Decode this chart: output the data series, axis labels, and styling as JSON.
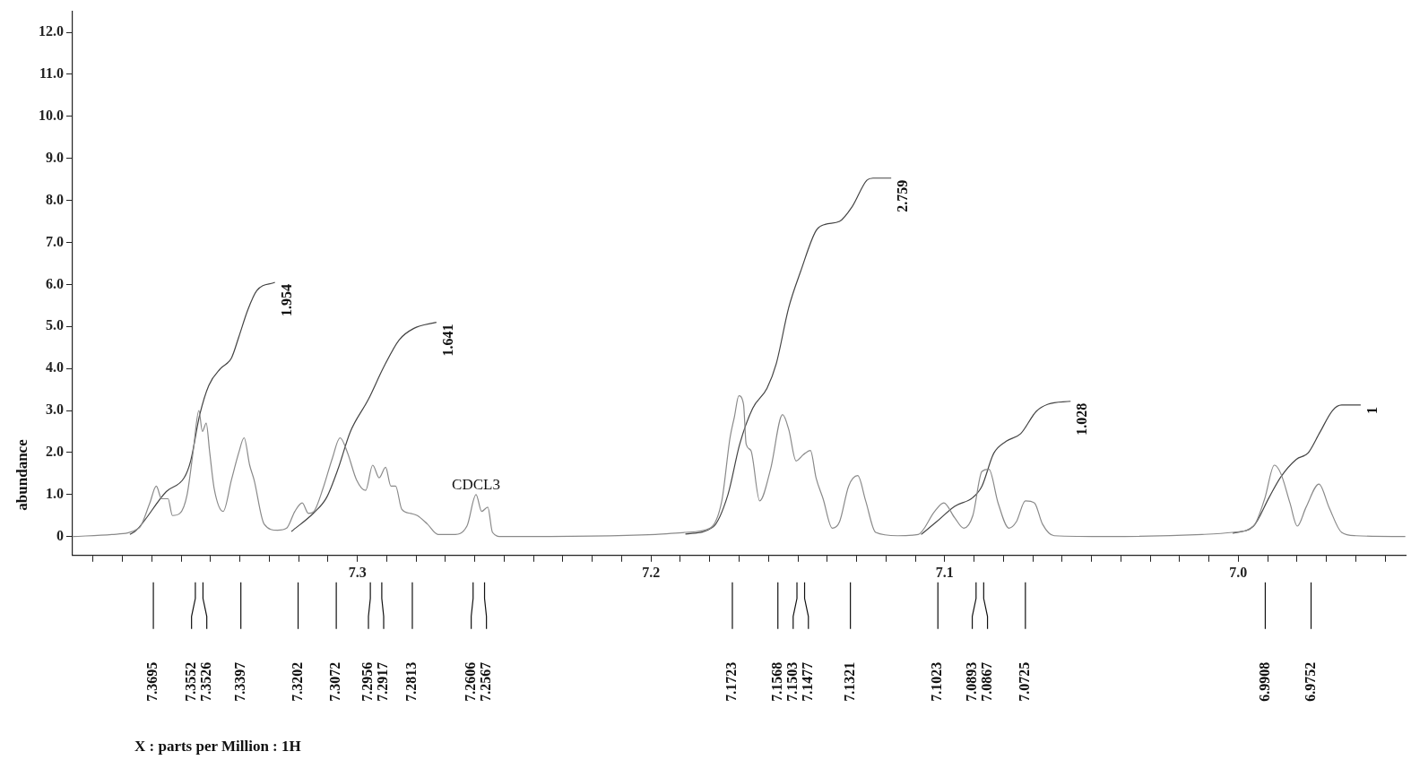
{
  "chart_data": {
    "type": "line",
    "ylabel": "abundance",
    "xlim": [
      7.397,
      6.943
    ],
    "ylim": [
      -0.45,
      12.5
    ],
    "xticks": [
      {
        "value": 7.39,
        "label": null
      },
      {
        "value": 7.38,
        "label": null
      },
      {
        "value": 7.37,
        "label": null
      },
      {
        "value": 7.36,
        "label": null
      },
      {
        "value": 7.35,
        "label": null
      },
      {
        "value": 7.34,
        "label": null
      },
      {
        "value": 7.33,
        "label": null
      },
      {
        "value": 7.32,
        "label": null
      },
      {
        "value": 7.31,
        "label": null
      },
      7.3,
      {
        "value": 7.29,
        "label": null
      },
      {
        "value": 7.28,
        "label": null
      },
      {
        "value": 7.27,
        "label": null
      },
      {
        "value": 7.26,
        "label": null
      },
      {
        "value": 7.25,
        "label": null
      },
      {
        "value": 7.24,
        "label": null
      },
      {
        "value": 7.23,
        "label": null
      },
      {
        "value": 7.22,
        "label": null
      },
      {
        "value": 7.21,
        "label": null
      },
      7.2,
      {
        "value": 7.19,
        "label": null
      },
      {
        "value": 7.18,
        "label": null
      },
      {
        "value": 7.17,
        "label": null
      },
      {
        "value": 7.16,
        "label": null
      },
      {
        "value": 7.15,
        "label": null
      },
      {
        "value": 7.14,
        "label": null
      },
      {
        "value": 7.13,
        "label": null
      },
      {
        "value": 7.12,
        "label": null
      },
      {
        "value": 7.11,
        "label": null
      },
      7.1,
      {
        "value": 7.09,
        "label": null
      },
      {
        "value": 7.08,
        "label": null
      },
      {
        "value": 7.07,
        "label": null
      },
      {
        "value": 7.06,
        "label": null
      },
      {
        "value": 7.05,
        "label": null
      },
      {
        "value": 7.04,
        "label": null
      },
      {
        "value": 7.03,
        "label": null
      },
      {
        "value": 7.02,
        "label": null
      },
      {
        "value": 7.01,
        "label": null
      },
      {
        "value": 7,
        "label": "7.0"
      },
      {
        "value": 6.99,
        "label": null
      },
      {
        "value": 6.98,
        "label": null
      },
      {
        "value": 6.97,
        "label": null
      },
      {
        "value": 6.96,
        "label": null
      },
      {
        "value": 6.95,
        "label": null
      }
    ],
    "x2lim": [
      7.397,
      6.943
    ],
    "x2ticks": [
      7.3695,
      7.3552,
      7.3526,
      7.3397,
      7.3202,
      7.3072,
      7.2956,
      7.2917,
      7.2813,
      7.2606,
      7.2567,
      7.1723,
      7.1568,
      7.1503,
      7.1477,
      7.1321,
      7.1023,
      7.0893,
      7.0867,
      7.0725,
      6.9908,
      6.9752
    ],
    "yticks": [
      0,
      {
        "value": 1,
        "label": "1.0"
      },
      {
        "value": 2,
        "label": "2.0"
      },
      {
        "value": 3,
        "label": "3.0"
      },
      {
        "value": 4,
        "label": "4.0"
      },
      {
        "value": 5,
        "label": "5.0"
      },
      {
        "value": 6,
        "label": "6.0"
      },
      {
        "value": 7,
        "label": "7.0"
      },
      {
        "value": 8,
        "label": "8.0"
      },
      {
        "value": 9,
        "label": "9.0"
      },
      {
        "value": 10,
        "label": "10.0"
      },
      {
        "value": 11,
        "label": "11.0"
      },
      {
        "value": 12,
        "label": "12.0"
      }
    ],
    "grid": false,
    "legend": false,
    "series": [
      {
        "color": "#8a8a8a",
        "x": [
          7.3969,
          7.3836,
          7.3744,
          7.3707,
          7.3685,
          7.3667,
          7.3645,
          7.363,
          7.3605,
          7.358,
          7.3559,
          7.354,
          7.3528,
          7.3515,
          7.3503,
          7.3488,
          7.3457,
          7.3429,
          7.3404,
          7.3386,
          7.3367,
          7.3352,
          7.3318,
          7.3272,
          7.3241,
          7.3213,
          7.3188,
          7.3167,
          7.3148,
          7.3117,
          7.3086,
          7.3059,
          7.3034,
          7.3003,
          7.2972,
          7.2948,
          7.2926,
          7.2904,
          7.2886,
          7.287,
          7.2849,
          7.2818,
          7.2796,
          7.2762,
          7.2725,
          7.2673,
          7.2627,
          7.2596,
          7.2577,
          7.2556,
          7.254,
          7.2509,
          7.1985,
          7.1883,
          7.1799,
          7.1759,
          7.1731,
          7.1716,
          7.1701,
          7.1685,
          7.1676,
          7.166,
          7.163,
          7.1593,
          7.1552,
          7.1531,
          7.1506,
          7.1481,
          7.1457,
          7.1438,
          7.1414,
          7.1383,
          7.1358,
          7.1327,
          7.1296,
          7.1269,
          7.1235,
          7.116,
          7.109,
          7.1034,
          7.1003,
          7.0966,
          7.0935,
          7.0904,
          7.0873,
          7.0849,
          7.0818,
          7.0781,
          7.0756,
          7.0725,
          7.0694,
          7.0667,
          7.0627,
          7.0441,
          7.0123,
          7.0019,
          6.9948,
          6.991,
          6.9877,
          6.9855,
          6.9824,
          6.9799,
          6.9769,
          6.9725,
          6.9691,
          6.9648,
          6.9599,
          6.9431
        ],
        "values": [
          0,
          0.05,
          0.2,
          0.8,
          1.2,
          0.9,
          0.9,
          0.5,
          0.55,
          1.0,
          2.05,
          3.0,
          2.5,
          2.7,
          2.0,
          1.15,
          0.6,
          1.35,
          2.0,
          2.35,
          1.7,
          1.35,
          0.3,
          0.15,
          0.2,
          0.6,
          0.8,
          0.55,
          0.6,
          1.15,
          1.85,
          2.35,
          2.0,
          1.35,
          1.1,
          1.7,
          1.4,
          1.65,
          1.2,
          1.2,
          0.65,
          0.55,
          0.5,
          0.3,
          0.05,
          0.05,
          0.25,
          1.0,
          0.6,
          0.7,
          0.1,
          0,
          0.05,
          0.1,
          0.2,
          0.85,
          2.35,
          2.85,
          3.35,
          3.15,
          2.2,
          2.05,
          0.85,
          1.6,
          2.9,
          2.55,
          1.8,
          1.95,
          2.05,
          1.4,
          0.9,
          0.2,
          0.35,
          1.2,
          1.45,
          0.85,
          0.1,
          0.02,
          0.05,
          0.6,
          0.8,
          0.45,
          0.2,
          0.5,
          1.55,
          1.6,
          0.8,
          0.2,
          0.35,
          0.85,
          0.8,
          0.3,
          0.02,
          0,
          0.05,
          0.1,
          0.25,
          0.9,
          1.7,
          1.5,
          0.8,
          0.25,
          0.7,
          1.25,
          0.7,
          0.1,
          0.02,
          0
        ]
      },
      {
        "color": "#444444",
        "x": [
          7.3775,
          7.3753,
          7.3651,
          7.359,
          7.3568,
          7.3537,
          7.3506,
          7.3466,
          7.3429,
          7.3404,
          7.3373,
          7.3343,
          7.3281
        ],
        "values": [
          0.05,
          0.15,
          1.07,
          1.4,
          1.8,
          2.9,
          3.6,
          4.0,
          4.25,
          4.75,
          5.4,
          5.85,
          6.05
        ]
      },
      {
        "color": "#444444",
        "x": [
          7.3225,
          7.3148,
          7.3105,
          7.3065,
          7.3025,
          7.2963,
          7.291,
          7.2858,
          7.2809,
          7.2731
        ],
        "values": [
          0.12,
          0.57,
          0.93,
          1.63,
          2.48,
          3.26,
          4.04,
          4.68,
          4.95,
          5.1
        ]
      },
      {
        "color": "#444444",
        "x": [
          7.1883,
          7.179,
          7.1738,
          7.1698,
          7.1654,
          7.1605,
          7.1574,
          7.1531,
          7.1491,
          7.1438,
          7.1407,
          7.1358,
          7.1315,
          7.1265,
          7.1244,
          7.1182
        ],
        "values": [
          0.06,
          0.22,
          1.0,
          2.2,
          3.05,
          3.53,
          4.1,
          5.45,
          6.3,
          7.28,
          7.43,
          7.5,
          7.85,
          8.48,
          8.53,
          8.53
        ]
      },
      {
        "color": "#444444",
        "x": [
          7.108,
          7.1028,
          7.0966,
          7.0904,
          7.0873,
          7.0833,
          7.079,
          7.0741,
          7.0688,
          7.0648,
          7.0571
        ],
        "values": [
          0.05,
          0.35,
          0.72,
          0.93,
          1.2,
          1.98,
          2.27,
          2.45,
          2.98,
          3.15,
          3.22
        ]
      },
      {
        "color": "#444444",
        "x": [
          7.0019,
          6.9948,
          6.9895,
          6.9855,
          6.9802,
          6.9762,
          6.9722,
          6.9679,
          6.9648,
          6.9583
        ],
        "values": [
          0.08,
          0.25,
          0.93,
          1.42,
          1.84,
          1.99,
          2.48,
          3.0,
          3.13,
          3.13
        ]
      }
    ],
    "annotations": [
      {
        "text": "CDCL3",
        "x": 7.2596,
        "y": 1.0
      },
      {
        "text": "1.954",
        "x": 7.3281,
        "y": 6.05
      },
      {
        "text": "1.641",
        "x": 7.2731,
        "y": 5.1
      },
      {
        "text": "2.759",
        "x": 7.1182,
        "y": 8.53
      },
      {
        "text": "1.028",
        "x": 7.0571,
        "y": 3.22
      },
      {
        "text": "1",
        "x": 6.9583,
        "y": 3.13
      },
      "X : parts per Million : 1H"
    ]
  }
}
